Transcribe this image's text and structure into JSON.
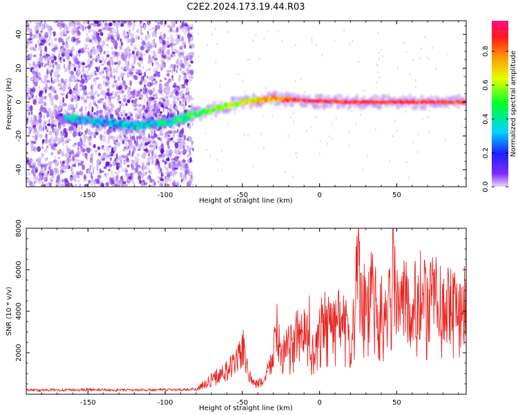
{
  "title": "C2E2.2024.173.19.44.R03",
  "colors": {
    "snr_line": "#e8231f",
    "speck_light": "#cdb4f5",
    "speck_dark": "#5c10d8",
    "frame": "#000000"
  },
  "chart_data": [
    {
      "type": "heatmap",
      "xlabel": "Height of straight line (km)",
      "ylabel": "Frequency (Hz)",
      "xlim": [
        -190,
        95
      ],
      "ylim": [
        -50,
        48
      ],
      "xticks": [
        -150,
        -100,
        -50,
        0,
        50
      ],
      "xtick_labels": [
        "-150",
        "-100",
        "-50",
        "0",
        "50"
      ],
      "yticks": [
        -40,
        -20,
        0,
        20,
        40
      ],
      "ytick_labels": [
        "-40",
        "-20",
        "0",
        "20",
        "40"
      ],
      "colorbar": {
        "label": "Normalized spectral amplitude",
        "range": [
          0,
          0.98
        ],
        "ticks": [
          0.0,
          0.2,
          0.4,
          0.6,
          0.8
        ],
        "tick_labels": [
          "0.0",
          "0.2",
          "0.4",
          "0.6",
          "0.8"
        ],
        "colormap": "rainbow (violet → blue → cyan → green → yellow → red → magenta)"
      },
      "ridge": [
        {
          "x": -160,
          "y": -10,
          "amp": 0.3
        },
        {
          "x": -140,
          "y": -12,
          "amp": 0.3
        },
        {
          "x": -120,
          "y": -14,
          "amp": 0.35
        },
        {
          "x": -100,
          "y": -12,
          "amp": 0.4
        },
        {
          "x": -90,
          "y": -10,
          "amp": 0.45
        },
        {
          "x": -80,
          "y": -7,
          "amp": 0.5
        },
        {
          "x": -70,
          "y": -5,
          "amp": 0.55
        },
        {
          "x": -60,
          "y": -2,
          "amp": 0.6
        },
        {
          "x": -50,
          "y": 0,
          "amp": 0.65
        },
        {
          "x": -40,
          "y": 1,
          "amp": 0.7
        },
        {
          "x": -30,
          "y": 2,
          "amp": 0.78
        },
        {
          "x": -20,
          "y": 1.5,
          "amp": 0.82
        },
        {
          "x": -10,
          "y": 1,
          "amp": 0.85
        },
        {
          "x": 0,
          "y": 0.5,
          "amp": 0.88
        },
        {
          "x": 20,
          "y": 0,
          "amp": 0.88
        },
        {
          "x": 40,
          "y": 0,
          "amp": 0.9
        },
        {
          "x": 60,
          "y": 0,
          "amp": 0.9
        },
        {
          "x": 80,
          "y": 0,
          "amp": 0.88
        },
        {
          "x": 95,
          "y": 0,
          "amp": 0.85
        }
      ],
      "noise_region_x": [
        -190,
        -82
      ]
    },
    {
      "type": "line",
      "xlabel": "Height of straight line (km)",
      "ylabel": "SNR (10 * v/v)",
      "xlim": [
        -190,
        95
      ],
      "ylim": [
        0,
        8000
      ],
      "xticks": [
        -150,
        -100,
        -50,
        0,
        50
      ],
      "xtick_labels": [
        "-150",
        "-100",
        "-50",
        "0",
        "50"
      ],
      "yticks": [
        2000,
        4000,
        6000,
        8000
      ],
      "ytick_labels": [
        "2000",
        "4000",
        "6000",
        "8000"
      ],
      "series": [
        {
          "x": [
            -190,
            -170,
            -150,
            -130,
            -110,
            -90,
            -80,
            -72,
            -62,
            -55,
            -50,
            -47,
            -44,
            -40,
            -35,
            -30,
            -28,
            -25,
            -20,
            -15,
            -10,
            -7,
            -5,
            0,
            3,
            8,
            12,
            17,
            20,
            22,
            25,
            27,
            28,
            30,
            35,
            40,
            45,
            48,
            50,
            52,
            55,
            60,
            65,
            70,
            75,
            80,
            85,
            90,
            95
          ],
          "values": [
            200,
            200,
            220,
            200,
            210,
            220,
            250,
            700,
            1200,
            1600,
            2600,
            1500,
            700,
            500,
            900,
            2200,
            3700,
            2000,
            2600,
            3100,
            3300,
            4000,
            2500,
            3700,
            3900,
            3600,
            4100,
            3700,
            2200,
            4200,
            7300,
            5600,
            5100,
            5000,
            5700,
            4400,
            4900,
            7500,
            4700,
            5400,
            5100,
            4800,
            5400,
            4700,
            5500,
            4800,
            4900,
            5100,
            4800
          ]
        }
      ]
    }
  ]
}
